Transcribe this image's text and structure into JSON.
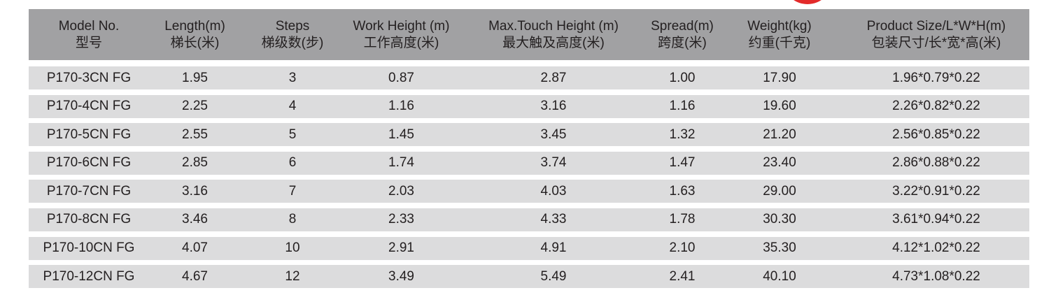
{
  "headers": [
    {
      "en": "Model No.",
      "zh": "型号"
    },
    {
      "en": "Length(m)",
      "zh": "梯长(米)"
    },
    {
      "en": "Steps",
      "zh": "梯级数(步)"
    },
    {
      "en": "Work Height (m)",
      "zh": "工作高度(米)"
    },
    {
      "en": "Max.Touch Height (m)",
      "zh": "最大触及高度(米)"
    },
    {
      "en": "Spread(m)",
      "zh": "跨度(米)"
    },
    {
      "en": "Weight(kg)",
      "zh": "约重(千克)"
    },
    {
      "en": "Product Size/L*W*H(m)",
      "zh": "包装尺寸/长*宽*高(米)"
    }
  ],
  "rows": [
    [
      "P170-3CN FG",
      "1.95",
      "3",
      "0.87",
      "2.87",
      "1.00",
      "17.90",
      "1.96*0.79*0.22"
    ],
    [
      "P170-4CN FG",
      "2.25",
      "4",
      "1.16",
      "3.16",
      "1.16",
      "19.60",
      "2.26*0.82*0.22"
    ],
    [
      "P170-5CN FG",
      "2.55",
      "5",
      "1.45",
      "3.45",
      "1.32",
      "21.20",
      "2.56*0.85*0.22"
    ],
    [
      "P170-6CN FG",
      "2.85",
      "6",
      "1.74",
      "3.74",
      "1.47",
      "23.40",
      "2.86*0.88*0.22"
    ],
    [
      "P170-7CN FG",
      "3.16",
      "7",
      "2.03",
      "4.03",
      "1.63",
      "29.00",
      "3.22*0.91*0.22"
    ],
    [
      "P170-8CN FG",
      "3.46",
      "8",
      "2.33",
      "4.33",
      "1.78",
      "30.30",
      "3.61*0.94*0.22"
    ],
    [
      "P170-10CN FG",
      "4.07",
      "10",
      "2.91",
      "4.91",
      "2.10",
      "35.30",
      "4.12*1.02*0.22"
    ],
    [
      "P170-12CN FG",
      "4.67",
      "12",
      "3.49",
      "5.49",
      "2.41",
      "40.10",
      "4.73*1.08*0.22"
    ]
  ],
  "colors": {
    "header_bg": "#a1a1a3",
    "row_bg": "#dcdcdd",
    "badge": "#e32a2a"
  }
}
